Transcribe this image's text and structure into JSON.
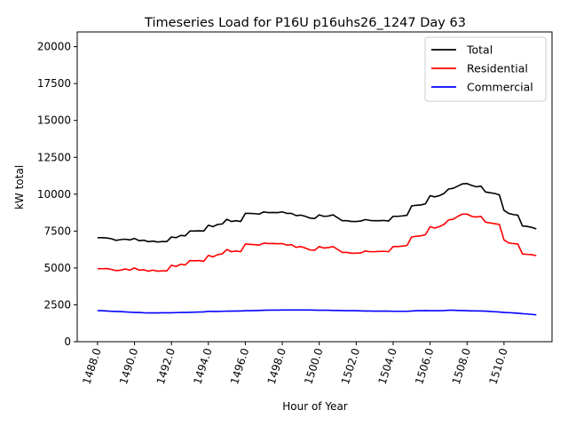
{
  "chart_data": {
    "type": "line",
    "title": "Timeseries Load for P16U p16uhs26_1247  Day 63",
    "xlabel": "Hour of Year",
    "ylabel": "kW total",
    "xlim": [
      1486.9,
      1512.6
    ],
    "ylim": [
      0,
      21000
    ],
    "xticks": [
      1488,
      1490,
      1492,
      1494,
      1496,
      1498,
      1500,
      1502,
      1504,
      1506,
      1508,
      1510
    ],
    "xtick_labels": [
      "1488.0",
      "1490.0",
      "1492.0",
      "1494.0",
      "1496.0",
      "1498.0",
      "1500.0",
      "1502.0",
      "1504.0",
      "1506.0",
      "1508.0",
      "1510.0"
    ],
    "yticks": [
      0,
      2500,
      5000,
      7500,
      10000,
      12500,
      15000,
      17500,
      20000
    ],
    "ytick_labels": [
      "0",
      "2500",
      "5000",
      "7500",
      "10000",
      "12500",
      "15000",
      "17500",
      "20000"
    ],
    "legend_location": "top-right",
    "x_start": 1488,
    "x_step": 0.25,
    "series": [
      {
        "name": "Total",
        "color": "#000000",
        "values": [
          7050,
          7050,
          7030,
          6980,
          6870,
          6920,
          6950,
          6900,
          7000,
          6850,
          6880,
          6780,
          6820,
          6760,
          6790,
          6790,
          7100,
          7050,
          7200,
          7180,
          7500,
          7500,
          7520,
          7500,
          7900,
          7800,
          7950,
          7980,
          8300,
          8150,
          8200,
          8150,
          8700,
          8700,
          8680,
          8650,
          8800,
          8750,
          8760,
          8750,
          8800,
          8700,
          8700,
          8550,
          8580,
          8500,
          8380,
          8350,
          8600,
          8500,
          8520,
          8600,
          8400,
          8200,
          8200,
          8150,
          8150,
          8180,
          8280,
          8220,
          8200,
          8200,
          8220,
          8180,
          8500,
          8500,
          8530,
          8570,
          9200,
          9250,
          9270,
          9350,
          9900,
          9820,
          9900,
          10050,
          10350,
          10400,
          10550,
          10700,
          10720,
          10600,
          10500,
          10550,
          10150,
          10100,
          10050,
          9950,
          8900,
          8700,
          8620,
          8580,
          7850,
          7820,
          7750,
          7650
        ]
      },
      {
        "name": "Residential",
        "color": "#ff0000",
        "values": [
          4950,
          4950,
          4960,
          4900,
          4820,
          4850,
          4930,
          4850,
          5000,
          4850,
          4880,
          4780,
          4850,
          4780,
          4800,
          4800,
          5180,
          5100,
          5250,
          5200,
          5500,
          5480,
          5500,
          5450,
          5850,
          5750,
          5900,
          5950,
          6250,
          6100,
          6150,
          6100,
          6620,
          6600,
          6580,
          6550,
          6680,
          6650,
          6660,
          6640,
          6650,
          6550,
          6580,
          6400,
          6450,
          6350,
          6220,
          6200,
          6450,
          6350,
          6380,
          6450,
          6250,
          6050,
          6050,
          6000,
          6000,
          6020,
          6150,
          6100,
          6100,
          6120,
          6130,
          6100,
          6450,
          6450,
          6480,
          6520,
          7100,
          7150,
          7180,
          7250,
          7800,
          7700,
          7800,
          7950,
          8250,
          8300,
          8500,
          8650,
          8650,
          8500,
          8450,
          8500,
          8100,
          8050,
          8000,
          7950,
          6900,
          6700,
          6650,
          6620,
          5950,
          5920,
          5900,
          5830
        ]
      },
      {
        "name": "Commercial",
        "color": "#0000ff",
        "values": [
          2100,
          2100,
          2080,
          2060,
          2050,
          2040,
          2020,
          2000,
          1980,
          1980,
          1960,
          1950,
          1950,
          1950,
          1960,
          1960,
          1960,
          1970,
          1980,
          1980,
          1990,
          2000,
          2010,
          2020,
          2060,
          2050,
          2050,
          2060,
          2070,
          2070,
          2080,
          2080,
          2100,
          2100,
          2110,
          2120,
          2130,
          2140,
          2140,
          2140,
          2150,
          2150,
          2150,
          2150,
          2150,
          2150,
          2150,
          2140,
          2130,
          2130,
          2130,
          2120,
          2120,
          2110,
          2100,
          2100,
          2100,
          2090,
          2080,
          2080,
          2070,
          2070,
          2070,
          2070,
          2060,
          2060,
          2060,
          2060,
          2080,
          2100,
          2100,
          2110,
          2100,
          2100,
          2100,
          2110,
          2130,
          2130,
          2120,
          2110,
          2100,
          2090,
          2090,
          2080,
          2070,
          2050,
          2030,
          2010,
          1980,
          1970,
          1950,
          1930,
          1900,
          1880,
          1850,
          1820
        ]
      }
    ]
  }
}
